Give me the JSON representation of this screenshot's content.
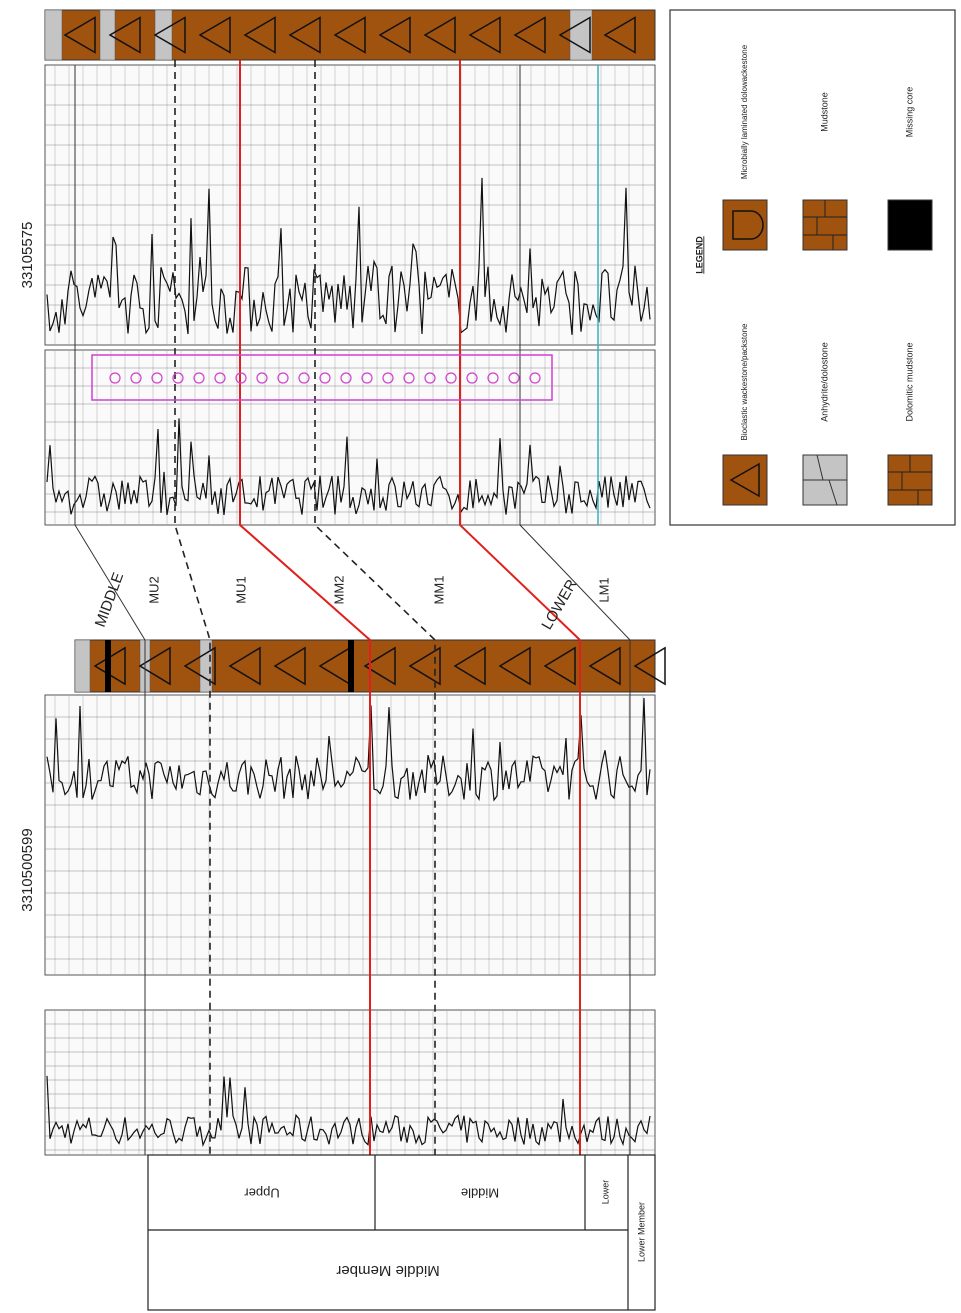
{
  "wells": [
    {
      "label": "3310500599"
    },
    {
      "label": "33105575"
    }
  ],
  "boundaries": {
    "middle": "MIDDLE",
    "lower": "LOWER"
  },
  "zones": [
    "MU2",
    "MU1",
    "MM2",
    "MM1",
    "LM1"
  ],
  "table": {
    "submembers": [
      "Upper",
      "Middle",
      "Lower"
    ],
    "members": [
      "Middle Member",
      "Lower Member"
    ]
  },
  "legend": {
    "title": "LEGEND",
    "items": [
      {
        "label": "Bioclastic wackestone/packstone"
      },
      {
        "label": "Anhydrite/dolostone"
      },
      {
        "label": "Dolomitic mudstone"
      },
      {
        "label": "Microbially laminated dolowackestone"
      },
      {
        "label": "Mudstone"
      },
      {
        "label": "Missing core"
      }
    ]
  }
}
